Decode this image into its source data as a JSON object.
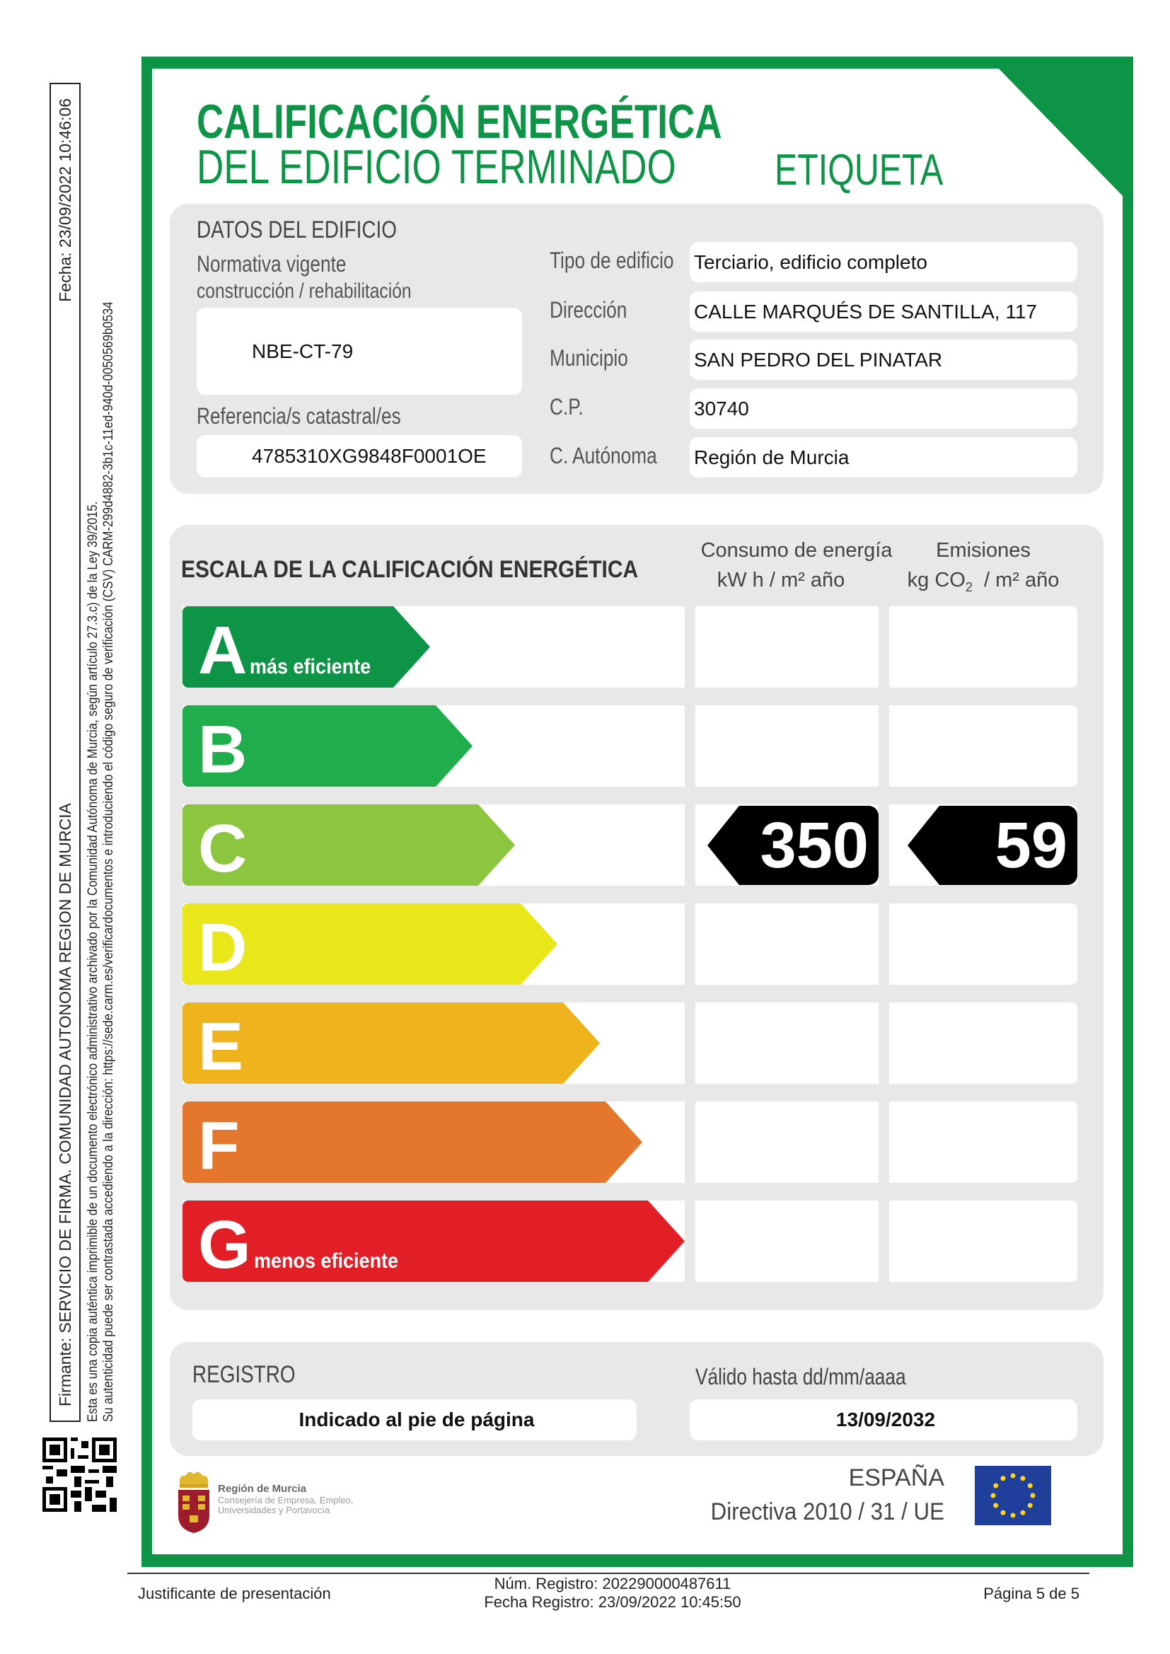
{
  "side": {
    "firmante": "Firmante: SERVICIO DE FIRMA. COMUNIDAD AUTONOMA REGION DE MURCIA",
    "fecha": "Fecha: 23/09/2022 10:46:06",
    "line1": "Esta es una copia auténtica imprimible de un documento electrónico administrativo archivado por la Comunidad Autónoma de Murcia, según artículo 27.3.c) de la Ley 39/2015.",
    "line2": "Su autenticidad puede ser contrastada accediendo a la dirección: https://sede.carm.es/verificardocumentos e introduciendo el código seguro de verificación (CSV) CARM-299d4882-3b1c-11ed-940d-0050569b0534"
  },
  "header": {
    "title1": "CALIFICACIÓN ENERGÉTICA",
    "title2": "DEL EDIFICIO TERMINADO",
    "etiqueta": "ETIQUETA"
  },
  "datos": {
    "heading": "DATOS DEL EDIFICIO",
    "normativa_label1": "Normativa vigente",
    "normativa_label2": "construcción / rehabilitación",
    "normativa": "NBE-CT-79",
    "referencia_label": "Referencia/s catastral/es",
    "referencia": "4785310XG9848F0001OE",
    "fields": [
      {
        "label": "Tipo de edificio",
        "value": "Terciario, edificio completo"
      },
      {
        "label": "Dirección",
        "value": "CALLE MARQUÉS DE SANTILLA, 117"
      },
      {
        "label": "Municipio",
        "value": "SAN PEDRO DEL PINATAR"
      },
      {
        "label": "C.P.",
        "value": "30740"
      },
      {
        "label": "C. Autónoma",
        "value": "Región de Murcia"
      }
    ]
  },
  "escala": {
    "heading": "ESCALA DE LA CALIFICACIÓN ENERGÉTICA",
    "col1_title": "Consumo de energía",
    "col1_unit": "kW h  / m² año",
    "col2_title": "Emisiones",
    "col2_unit_a": "kg CO",
    "col2_unit_sub": "2",
    "col2_unit_b": "  / m² año",
    "rating": "C",
    "energy_value": "350",
    "emissions_value": "59",
    "classes": [
      {
        "letter": "A",
        "sub": "más eficiente",
        "color": "#0e9447"
      },
      {
        "letter": "B",
        "sub": "",
        "color": "#1fae4b"
      },
      {
        "letter": "C",
        "sub": "",
        "color": "#8cc63f"
      },
      {
        "letter": "D",
        "sub": "",
        "color": "#e9e61a"
      },
      {
        "letter": "E",
        "sub": "",
        "color": "#efb41d"
      },
      {
        "letter": "F",
        "sub": "",
        "color": "#e4772c"
      },
      {
        "letter": "G",
        "sub": "menos eficiente",
        "color": "#e21e26"
      }
    ]
  },
  "registro": {
    "heading": "REGISTRO",
    "value": "Indicado al pie de página",
    "valido_label": "Válido hasta dd/mm/aaaa",
    "valido": "13/09/2032"
  },
  "logos": {
    "murcia1": "Región de Murcia",
    "murcia2": "Consejería de Empresa, Empleo,",
    "murcia3": "Universidades y Portavocía",
    "espana": "ESPAÑA",
    "directiva": "Directiva 2010 / 31 / UE"
  },
  "footer": {
    "left": "Justificante de presentación",
    "num": "Núm. Registro: 202290000487611",
    "fecha": "Fecha Registro: 23/09/2022 10:45:50",
    "page": "Página 5 de 5"
  }
}
